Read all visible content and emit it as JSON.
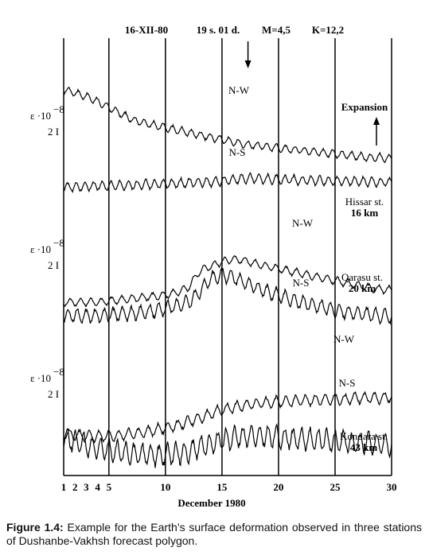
{
  "chart_data": {
    "type": "line",
    "xlabel": "December 1980",
    "x_ticks": [
      1,
      2,
      3,
      4,
      5,
      10,
      15,
      20,
      25,
      30
    ],
    "xlim": [
      1,
      30
    ],
    "top_annotations": {
      "date": "16-XII-80",
      "time": "19 s. 01 d.",
      "magnitude": "M=4,5",
      "energy_class": "K=12,2"
    },
    "expansion_label": "Expansion",
    "event_day": 17.3,
    "panels": [
      {
        "station": "Hissar st.",
        "distance": "16 km",
        "ylabel": "ε ·10",
        "ylabel_exp": "−8",
        "scale_label": "2 I",
        "series": [
          {
            "name": "N-W",
            "values": [
              6.5,
              6.2,
              5.9,
              5.5,
              5.0,
              4.5,
              4.0,
              3.7,
              3.5,
              3.3,
              3.1,
              2.9,
              2.7,
              2.5,
              2.3,
              2.1,
              1.9,
              1.8,
              1.7,
              1.6,
              1.5,
              1.4,
              1.3,
              1.2,
              1.1,
              1.0,
              0.9,
              0.8,
              0.8,
              0.7
            ]
          },
          {
            "name": "N-S",
            "values": [
              0.2,
              0.2,
              0.25,
              0.3,
              0.3,
              0.3,
              0.35,
              0.4,
              0.4,
              0.45,
              0.5,
              0.55,
              0.6,
              0.6,
              0.7,
              0.8,
              0.9,
              0.9,
              0.85,
              0.8,
              0.8,
              0.75,
              0.75,
              0.7,
              0.7,
              0.7,
              0.65,
              0.65,
              0.6,
              0.6
            ]
          }
        ]
      },
      {
        "station": "Qarasu st.",
        "distance": "20 km",
        "ylabel": "ε ·10",
        "ylabel_exp": "−8",
        "scale_label": "2 I",
        "series": [
          {
            "name": "N-W",
            "values": [
              0.0,
              0.0,
              0.0,
              0.0,
              0.1,
              0.2,
              0.3,
              0.4,
              0.5,
              0.6,
              0.8,
              1.2,
              2.6,
              3.0,
              3.4,
              3.6,
              3.5,
              3.2,
              3.0,
              2.8,
              2.6,
              2.4,
              2.2,
              2.0,
              1.8,
              1.6,
              1.4,
              1.2,
              1.1,
              1.0
            ]
          },
          {
            "name": "N-S",
            "values": [
              0.2,
              0.2,
              0.2,
              0.25,
              0.3,
              0.35,
              0.4,
              0.5,
              0.6,
              0.8,
              1.0,
              1.3,
              2.2,
              3.3,
              3.6,
              3.4,
              3.0,
              2.6,
              2.2,
              1.9,
              1.6,
              1.3,
              1.1,
              0.9,
              0.7,
              0.5,
              0.4,
              0.3,
              0.2,
              0.1
            ]
          }
        ]
      },
      {
        "station": "Kondara st.",
        "distance": "43 km",
        "ylabel": "ε ·10",
        "ylabel_exp": "−8",
        "scale_label": "2 I",
        "series": [
          {
            "name": "N-W",
            "values": [
              0.3,
              0.2,
              0.1,
              0.1,
              0.1,
              0.2,
              0.3,
              0.4,
              0.6,
              0.8,
              1.0,
              1.3,
              1.6,
              2.0,
              2.3,
              2.5,
              2.7,
              2.8,
              2.9,
              3.0,
              3.0,
              3.1,
              3.1,
              3.2,
              3.2,
              3.2,
              3.3,
              3.3,
              3.3,
              3.4
            ]
          },
          {
            "name": "N-S",
            "values": [
              1.6,
              1.3,
              1.0,
              0.8,
              0.6,
              0.4,
              0.3,
              0.2,
              0.2,
              0.2,
              0.3,
              0.5,
              0.8,
              1.1,
              1.4,
              1.6,
              1.7,
              1.8,
              1.8,
              1.7,
              1.6,
              1.5,
              1.5,
              1.4,
              1.3,
              1.3,
              1.2,
              1.2,
              1.1,
              1.1
            ]
          }
        ]
      }
    ]
  },
  "caption": {
    "prefix": "Figure 1.4:",
    "text": " Example for the Earth’s surface deformation observed in three stations of Dushanbe-Vakhsh forecast polygon."
  }
}
